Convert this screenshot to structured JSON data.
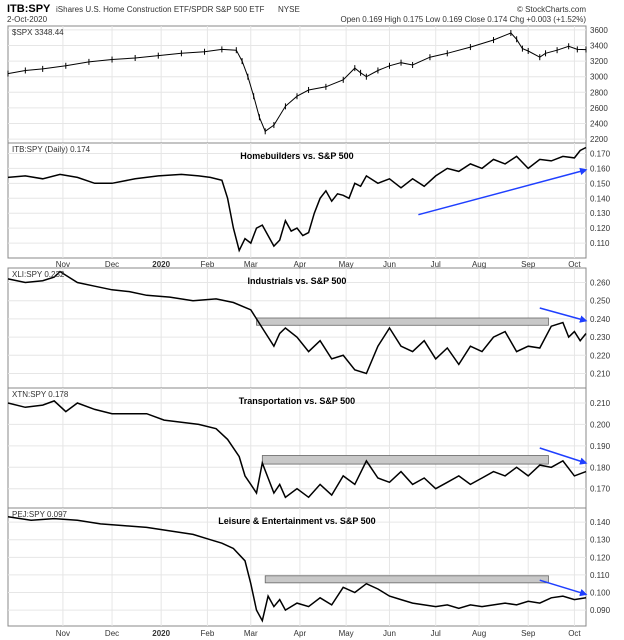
{
  "header": {
    "symbol": "ITB:SPY",
    "name": "iShares U.S. Home Construction ETF/SPDR S&P 500 ETF",
    "exchange": "NYSE",
    "date": "2-Oct-2020",
    "quote": "Open 0.169  High 0.175  Low 0.169  Close 0.174  Chg +0.003 (+1.52%)",
    "watermark": "© StockCharts.com"
  },
  "xaxis": {
    "labels": [
      "Nov",
      "Dec",
      "2020",
      "Feb",
      "Mar",
      "Apr",
      "May",
      "Jun",
      "Jul",
      "Aug",
      "Sep",
      "Oct"
    ],
    "bold": [
      "2020"
    ]
  },
  "chart_data": [
    {
      "type": "line",
      "legend": "$SPX 3348.44",
      "title": "",
      "y_ticks": [
        "2200",
        "2400",
        "2600",
        "2800",
        "3000",
        "3200",
        "3400",
        "3600"
      ],
      "ylim": [
        2150,
        3650
      ],
      "style": "bars",
      "series": [
        {
          "x": [
            0,
            0.03,
            0.06,
            0.1,
            0.14,
            0.18,
            0.22,
            0.26,
            0.3,
            0.34,
            0.37,
            0.395,
            0.405,
            0.415,
            0.425,
            0.435,
            0.445,
            0.46,
            0.48,
            0.5,
            0.52,
            0.55,
            0.58,
            0.6,
            0.61,
            0.62,
            0.64,
            0.66,
            0.68,
            0.7,
            0.73,
            0.76,
            0.8,
            0.84,
            0.87,
            0.88,
            0.89,
            0.9,
            0.92,
            0.93,
            0.95,
            0.97,
            0.985,
            1
          ],
          "y": [
            3040,
            3080,
            3100,
            3140,
            3190,
            3220,
            3240,
            3270,
            3300,
            3320,
            3350,
            3340,
            3200,
            3000,
            2750,
            2480,
            2300,
            2380,
            2620,
            2750,
            2830,
            2870,
            2960,
            3110,
            3050,
            3000,
            3080,
            3140,
            3180,
            3150,
            3250,
            3300,
            3380,
            3470,
            3560,
            3480,
            3360,
            3330,
            3250,
            3300,
            3340,
            3390,
            3350,
            3348
          ]
        }
      ],
      "annotations": []
    },
    {
      "type": "line",
      "legend": "ITB:SPY (Daily) 0.174",
      "title": "Homebuilders vs. S&P 500",
      "y_ticks": [
        "0.110",
        "0.120",
        "0.130",
        "0.140",
        "0.150",
        "0.160",
        "0.170"
      ],
      "ylim": [
        0.1,
        0.177
      ],
      "series": [
        {
          "x": [
            0,
            0.03,
            0.06,
            0.09,
            0.12,
            0.15,
            0.18,
            0.22,
            0.26,
            0.3,
            0.33,
            0.35,
            0.37,
            0.38,
            0.39,
            0.4,
            0.41,
            0.42,
            0.43,
            0.44,
            0.45,
            0.46,
            0.47,
            0.48,
            0.49,
            0.5,
            0.51,
            0.52,
            0.53,
            0.54,
            0.55,
            0.56,
            0.57,
            0.58,
            0.59,
            0.6,
            0.61,
            0.62,
            0.64,
            0.66,
            0.68,
            0.7,
            0.72,
            0.74,
            0.76,
            0.78,
            0.8,
            0.82,
            0.84,
            0.86,
            0.88,
            0.9,
            0.92,
            0.94,
            0.96,
            0.98,
            0.99,
            1
          ],
          "y": [
            0.154,
            0.155,
            0.153,
            0.156,
            0.154,
            0.15,
            0.15,
            0.153,
            0.155,
            0.156,
            0.155,
            0.154,
            0.152,
            0.14,
            0.12,
            0.105,
            0.113,
            0.11,
            0.12,
            0.122,
            0.115,
            0.108,
            0.112,
            0.125,
            0.118,
            0.12,
            0.115,
            0.117,
            0.13,
            0.14,
            0.145,
            0.138,
            0.143,
            0.142,
            0.14,
            0.15,
            0.148,
            0.155,
            0.15,
            0.153,
            0.147,
            0.153,
            0.148,
            0.155,
            0.16,
            0.158,
            0.163,
            0.16,
            0.166,
            0.163,
            0.168,
            0.16,
            0.166,
            0.165,
            0.168,
            0.167,
            0.172,
            0.174
          ]
        }
      ],
      "annotations": [
        {
          "kind": "arrow",
          "from": [
            0.71,
            0.129
          ],
          "to": [
            1.0,
            0.159
          ],
          "color": "#1f3fff"
        }
      ]
    },
    {
      "type": "line",
      "legend": "XLI:SPY 0.232",
      "title": "Industrials vs. S&P 500",
      "y_ticks": [
        "0.210",
        "0.220",
        "0.230",
        "0.240",
        "0.250",
        "0.260"
      ],
      "ylim": [
        0.202,
        0.268
      ],
      "series": [
        {
          "x": [
            0,
            0.03,
            0.06,
            0.08,
            0.09,
            0.1,
            0.12,
            0.15,
            0.18,
            0.21,
            0.24,
            0.28,
            0.32,
            0.36,
            0.39,
            0.42,
            0.44,
            0.46,
            0.47,
            0.48,
            0.5,
            0.52,
            0.54,
            0.56,
            0.58,
            0.6,
            0.62,
            0.64,
            0.66,
            0.68,
            0.7,
            0.72,
            0.74,
            0.76,
            0.78,
            0.8,
            0.82,
            0.84,
            0.86,
            0.88,
            0.9,
            0.92,
            0.94,
            0.96,
            0.97,
            0.98,
            0.99,
            1
          ],
          "y": [
            0.262,
            0.26,
            0.261,
            0.263,
            0.266,
            0.264,
            0.26,
            0.258,
            0.256,
            0.255,
            0.253,
            0.252,
            0.25,
            0.251,
            0.249,
            0.245,
            0.235,
            0.225,
            0.232,
            0.235,
            0.23,
            0.222,
            0.228,
            0.218,
            0.22,
            0.212,
            0.21,
            0.225,
            0.235,
            0.225,
            0.222,
            0.228,
            0.218,
            0.224,
            0.215,
            0.225,
            0.222,
            0.23,
            0.233,
            0.222,
            0.225,
            0.224,
            0.236,
            0.238,
            0.23,
            0.233,
            0.228,
            0.232
          ]
        }
      ],
      "annotations": [
        {
          "kind": "box",
          "x0": 0.43,
          "x1": 0.935,
          "y0": 0.2365,
          "y1": 0.2405,
          "color": "#c8c8c8"
        },
        {
          "kind": "arrow",
          "from": [
            0.92,
            0.246
          ],
          "to": [
            1.0,
            0.239
          ],
          "color": "#1f3fff"
        }
      ]
    },
    {
      "type": "line",
      "legend": "XTN:SPY 0.178",
      "title": "Transportation vs. S&P 500",
      "y_ticks": [
        "0.170",
        "0.180",
        "0.190",
        "0.200",
        "0.210"
      ],
      "ylim": [
        0.161,
        0.217
      ],
      "series": [
        {
          "x": [
            0,
            0.03,
            0.06,
            0.08,
            0.1,
            0.12,
            0.15,
            0.18,
            0.21,
            0.24,
            0.27,
            0.3,
            0.33,
            0.36,
            0.38,
            0.4,
            0.41,
            0.42,
            0.43,
            0.44,
            0.45,
            0.46,
            0.47,
            0.48,
            0.5,
            0.52,
            0.54,
            0.56,
            0.58,
            0.6,
            0.62,
            0.64,
            0.66,
            0.68,
            0.7,
            0.72,
            0.74,
            0.76,
            0.78,
            0.8,
            0.82,
            0.84,
            0.86,
            0.88,
            0.9,
            0.92,
            0.94,
            0.96,
            0.98,
            1
          ],
          "y": [
            0.21,
            0.208,
            0.209,
            0.211,
            0.206,
            0.21,
            0.207,
            0.205,
            0.205,
            0.205,
            0.202,
            0.201,
            0.2,
            0.198,
            0.193,
            0.185,
            0.176,
            0.172,
            0.168,
            0.182,
            0.175,
            0.168,
            0.172,
            0.166,
            0.17,
            0.166,
            0.172,
            0.167,
            0.176,
            0.172,
            0.183,
            0.175,
            0.173,
            0.178,
            0.172,
            0.175,
            0.17,
            0.173,
            0.176,
            0.172,
            0.175,
            0.178,
            0.176,
            0.18,
            0.176,
            0.181,
            0.18,
            0.183,
            0.176,
            0.178
          ]
        }
      ],
      "annotations": [
        {
          "kind": "box",
          "x0": 0.44,
          "x1": 0.935,
          "y0": 0.1815,
          "y1": 0.1855,
          "color": "#c8c8c8"
        },
        {
          "kind": "arrow",
          "from": [
            0.92,
            0.189
          ],
          "to": [
            1.0,
            0.182
          ],
          "color": "#1f3fff"
        }
      ]
    },
    {
      "type": "line",
      "legend": "PEJ:SPY 0.097",
      "title": "Leisure & Entertainment vs. S&P 500",
      "y_ticks": [
        "0.090",
        "0.100",
        "0.110",
        "0.120",
        "0.130",
        "0.140"
      ],
      "ylim": [
        0.081,
        0.148
      ],
      "series": [
        {
          "x": [
            0,
            0.04,
            0.08,
            0.12,
            0.16,
            0.2,
            0.24,
            0.28,
            0.32,
            0.35,
            0.37,
            0.39,
            0.41,
            0.42,
            0.43,
            0.44,
            0.45,
            0.46,
            0.47,
            0.48,
            0.5,
            0.52,
            0.54,
            0.56,
            0.58,
            0.6,
            0.62,
            0.64,
            0.66,
            0.68,
            0.7,
            0.72,
            0.74,
            0.76,
            0.78,
            0.8,
            0.82,
            0.84,
            0.86,
            0.88,
            0.9,
            0.92,
            0.94,
            0.96,
            0.98,
            1
          ],
          "y": [
            0.143,
            0.141,
            0.142,
            0.141,
            0.139,
            0.138,
            0.137,
            0.135,
            0.133,
            0.13,
            0.128,
            0.125,
            0.118,
            0.105,
            0.09,
            0.084,
            0.098,
            0.092,
            0.096,
            0.09,
            0.094,
            0.092,
            0.097,
            0.093,
            0.103,
            0.1,
            0.105,
            0.102,
            0.098,
            0.096,
            0.094,
            0.093,
            0.092,
            0.093,
            0.091,
            0.093,
            0.092,
            0.093,
            0.094,
            0.093,
            0.095,
            0.094,
            0.097,
            0.098,
            0.096,
            0.097
          ]
        }
      ],
      "annotations": [
        {
          "kind": "box",
          "x0": 0.445,
          "x1": 0.935,
          "y0": 0.1055,
          "y1": 0.1095,
          "color": "#c8c8c8"
        },
        {
          "kind": "arrow",
          "from": [
            0.92,
            0.107
          ],
          "to": [
            1.0,
            0.099
          ],
          "color": "#1f3fff"
        }
      ]
    }
  ]
}
